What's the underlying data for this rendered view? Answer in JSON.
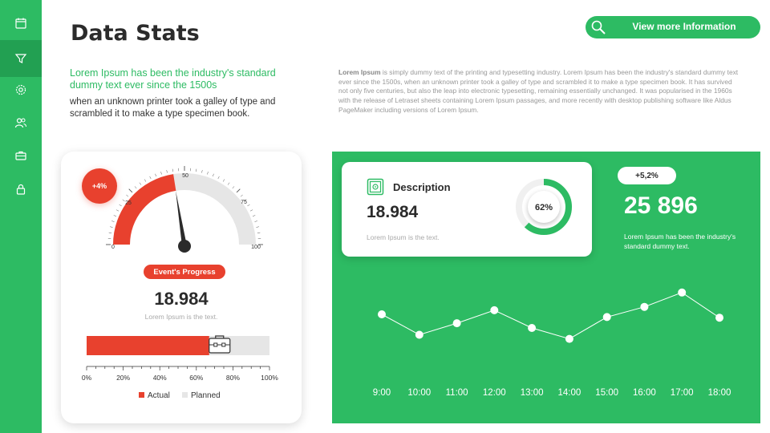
{
  "header": {
    "title": "Data Stats",
    "more_button": "View  more Information"
  },
  "sidebar": {
    "items": [
      {
        "icon": "calendar-icon"
      },
      {
        "icon": "funnel-icon"
      },
      {
        "icon": "gear-icon"
      },
      {
        "icon": "users-icon"
      },
      {
        "icon": "briefcase-icon"
      },
      {
        "icon": "lock-icon"
      }
    ]
  },
  "intro": {
    "green_text": "Lorem Ipsum has been the industry's standard dummy text ever since the 1500s",
    "dark_text": "when an unknown printer took a galley of type and scrambled it to make a type specimen book.",
    "para_lead": "Lorem Ipsum",
    "para_rest": " is simply dummy text of the printing and typesetting industry. Lorem Ipsum has been the industry's standard dummy text ever since the 1500s, when an unknown printer took a galley of type and scrambled it to make a type specimen book. It has survived not only five centuries, but also the leap into electronic typesetting, remaining essentially unchanged. It was popularised in the 1960s with the release of Letraset sheets containing Lorem Ipsum passages, and more recently with desktop publishing software like Aldus PageMaker including versions of Lorem Ipsum."
  },
  "left_card": {
    "badge": "+4%",
    "gauge": {
      "ticks": [
        "0",
        "25",
        "50",
        "75",
        "100"
      ],
      "value": 45
    },
    "pill": "Event's Progress",
    "value": "18.984",
    "sub": "Lorem Ipsum is the text.",
    "bar": {
      "actual": 67,
      "planned": 100,
      "ticks": [
        "0%",
        "20%",
        "40%",
        "60%",
        "80%",
        "100%"
      ],
      "legend_actual": "Actual",
      "legend_planned": "Planned"
    }
  },
  "description_card": {
    "title": "Description",
    "value": "18.984",
    "sub": "Lorem Ipsum is the text.",
    "donut_label": "62%",
    "donut_value": 62
  },
  "right_stats": {
    "pill": "+5,2%",
    "value": "25 896",
    "sub": "Lorem Ipsum has been the industry's standard dummy text."
  },
  "colors": {
    "green": "#2dbb63",
    "dark_green": "#22a052",
    "red": "#e8412e",
    "grey": "#e6e6e6"
  },
  "chart_data": {
    "type": "line",
    "categories": [
      "9:00",
      "10:00",
      "11:00",
      "12:00",
      "13:00",
      "14:00",
      "15:00",
      "16:00",
      "17:00",
      "18:00"
    ],
    "values": [
      60,
      30,
      47,
      66,
      40,
      24,
      56,
      71,
      92,
      55
    ],
    "ylim": [
      0,
      100
    ],
    "grid": false
  }
}
